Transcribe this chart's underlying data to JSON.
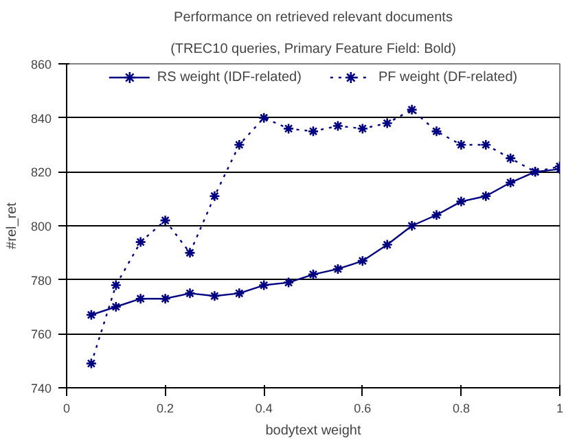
{
  "chart_data": {
    "type": "line",
    "title": "Performance on retrieved relevant documents",
    "subtitle": "(TREC10 queries, Primary Feature Field: Bold)",
    "xlabel": "bodytext weight",
    "ylabel": "#rel_ret",
    "x": [
      0.05,
      0.1,
      0.15,
      0.2,
      0.25,
      0.3,
      0.35,
      0.4,
      0.45,
      0.5,
      0.55,
      0.6,
      0.65,
      0.7,
      0.75,
      0.8,
      0.85,
      0.9,
      0.95,
      1.0
    ],
    "series": [
      {
        "name": "RS weight (IDF-related)",
        "color": "#000080",
        "line_style": "solid",
        "values": [
          767,
          770,
          773,
          773,
          775,
          774,
          775,
          778,
          779,
          782,
          784,
          787,
          793,
          800,
          804,
          809,
          811,
          816,
          820,
          821
        ]
      },
      {
        "name": "PF weight (DF-related)",
        "color": "#000080",
        "line_style": "dotted",
        "values": [
          749,
          778,
          794,
          802,
          790,
          811,
          830,
          840,
          836,
          835,
          837,
          836,
          838,
          843,
          835,
          830,
          830,
          825,
          820,
          822
        ]
      }
    ],
    "xlim": [
      0,
      1
    ],
    "xticks": [
      0,
      0.2,
      0.4,
      0.6,
      0.8,
      1
    ],
    "ylim": [
      740,
      860
    ],
    "yticks": [
      740,
      760,
      780,
      800,
      820,
      840,
      860
    ],
    "grid": "y",
    "legend": "top",
    "marker": "cross"
  }
}
